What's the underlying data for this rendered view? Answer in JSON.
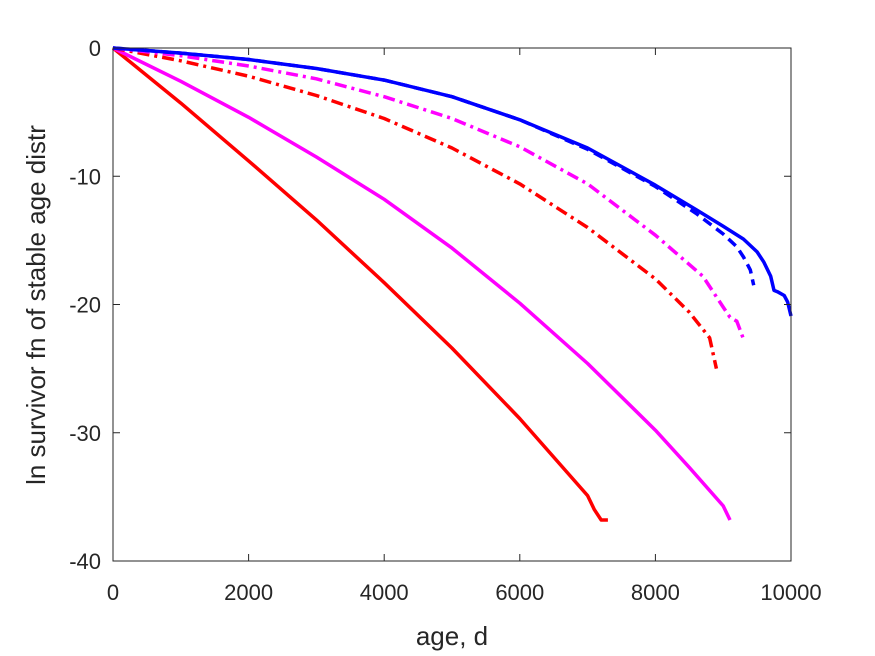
{
  "chart_data": {
    "type": "line",
    "xlabel": "age, d",
    "ylabel": "ln survivor fn of stable age distr",
    "xlim": [
      0,
      10000
    ],
    "ylim": [
      -40,
      0
    ],
    "xticks": [
      0,
      2000,
      4000,
      6000,
      8000,
      10000
    ],
    "yticks": [
      0,
      -10,
      -20,
      -30,
      -40
    ],
    "grid": false,
    "legend": "none",
    "series": [
      {
        "color": "#ff0000",
        "style": "solid",
        "x": [
          0,
          1000,
          2000,
          3000,
          4000,
          5000,
          6000,
          6500,
          7000,
          7100,
          7200,
          7300
        ],
        "y": [
          0,
          -4.3,
          -8.8,
          -13.4,
          -18.3,
          -23.4,
          -28.9,
          -31.9,
          -34.9,
          -36.0,
          -36.8,
          -36.8
        ]
      },
      {
        "color": "#ff00ff",
        "style": "solid",
        "x": [
          0,
          1000,
          2000,
          3000,
          4000,
          5000,
          6000,
          7000,
          8000,
          8500,
          9000,
          9100
        ],
        "y": [
          0,
          -2.6,
          -5.4,
          -8.5,
          -11.8,
          -15.6,
          -19.9,
          -24.6,
          -29.8,
          -32.7,
          -35.7,
          -36.8
        ]
      },
      {
        "color": "#ff0000",
        "style": "dashdot",
        "x": [
          0,
          1000,
          2000,
          3000,
          4000,
          5000,
          6000,
          7000,
          8000,
          8500,
          8800,
          8900
        ],
        "y": [
          0,
          -1.0,
          -2.2,
          -3.7,
          -5.5,
          -7.8,
          -10.6,
          -14.0,
          -18.0,
          -20.6,
          -22.6,
          -25.0
        ]
      },
      {
        "color": "#ff00ff",
        "style": "dashdot",
        "x": [
          0,
          1000,
          2000,
          3000,
          4000,
          5000,
          6000,
          7000,
          8000,
          8700,
          9000,
          9100,
          9200,
          9300
        ],
        "y": [
          0,
          -0.6,
          -1.4,
          -2.4,
          -3.8,
          -5.5,
          -7.7,
          -10.6,
          -14.6,
          -17.8,
          -20.2,
          -21.0,
          -21.3,
          -22.7
        ]
      },
      {
        "color": "#0000ff",
        "style": "dashed",
        "x": [
          0,
          1000,
          2000,
          3000,
          4000,
          5000,
          6000,
          7000,
          8000,
          8600,
          9000,
          9200,
          9300,
          9400,
          9450
        ],
        "y": [
          0,
          -0.4,
          -0.9,
          -1.6,
          -2.5,
          -3.8,
          -5.6,
          -7.9,
          -10.8,
          -12.9,
          -14.5,
          -15.5,
          -16.3,
          -17.3,
          -18.5
        ]
      },
      {
        "color": "#0000ff",
        "style": "solid",
        "x": [
          0,
          1000,
          2000,
          3000,
          4000,
          5000,
          6000,
          7000,
          8000,
          8600,
          9000,
          9300,
          9500,
          9600,
          9700,
          9750,
          9800,
          9900,
          9950,
          10000
        ],
        "y": [
          0,
          -0.4,
          -0.9,
          -1.6,
          -2.5,
          -3.8,
          -5.6,
          -7.8,
          -10.7,
          -12.6,
          -13.9,
          -14.9,
          -15.9,
          -16.7,
          -17.8,
          -18.9,
          -19.0,
          -19.3,
          -19.8,
          -20.9
        ]
      }
    ]
  }
}
